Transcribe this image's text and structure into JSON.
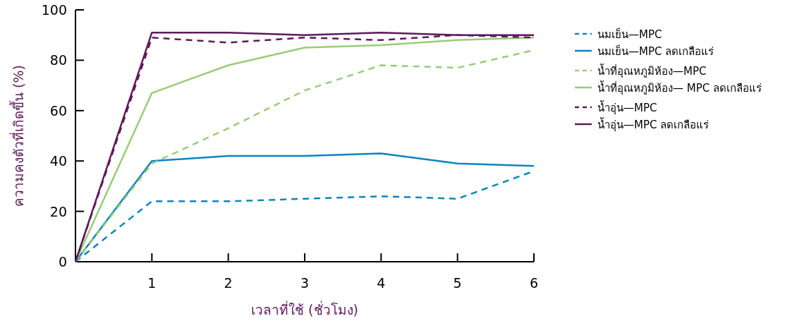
{
  "chart_data": {
    "type": "line",
    "xlabel": "เวลาที่ใช้ (ชั่วโมง)",
    "ylabel": "ความคงตัวที่เกิดขึ้น (%)",
    "x": [
      0,
      1,
      2,
      3,
      4,
      5,
      6
    ],
    "xlim": [
      0,
      6
    ],
    "xticks": [
      1,
      2,
      3,
      4,
      5,
      6
    ],
    "ylim": [
      0,
      100
    ],
    "yticks": [
      0,
      20,
      40,
      60,
      80,
      100
    ],
    "grid": false,
    "legend": "right",
    "marker": "none",
    "series": [
      {
        "name": "นมเย็น—MPC",
        "color": "#0a86bf",
        "line_style": "dashed",
        "values": [
          0,
          24,
          24,
          25,
          26,
          25,
          36
        ]
      },
      {
        "name": "นมเย็น—MPC ลดเกลือแร่",
        "color": "#0a86bf",
        "line_style": "solid",
        "values": [
          0,
          40,
          42,
          42,
          43,
          39,
          38
        ]
      },
      {
        "name": "น้ำที่อุณหภูมิห้อง—MPC",
        "color": "#99cc77",
        "line_style": "dashed",
        "values": [
          0,
          39,
          53,
          68,
          78,
          77,
          84
        ]
      },
      {
        "name": "น้ำที่อุณหภูมิห้อง— MPC ลดเกลือแร่",
        "color": "#99cc77",
        "line_style": "solid",
        "values": [
          0,
          67,
          78,
          85,
          86,
          88,
          89
        ]
      },
      {
        "name": "น้ำอุ่น—MPC",
        "color": "#5e1a5c",
        "line_style": "dashed",
        "values": [
          0,
          89,
          87,
          89,
          88,
          90,
          89
        ]
      },
      {
        "name": "น้ำอุ่น—MPC ลดเกลือแร่",
        "color": "#5e1a5c",
        "line_style": "solid",
        "values": [
          0,
          91,
          91,
          90,
          91,
          90,
          90
        ]
      }
    ]
  }
}
